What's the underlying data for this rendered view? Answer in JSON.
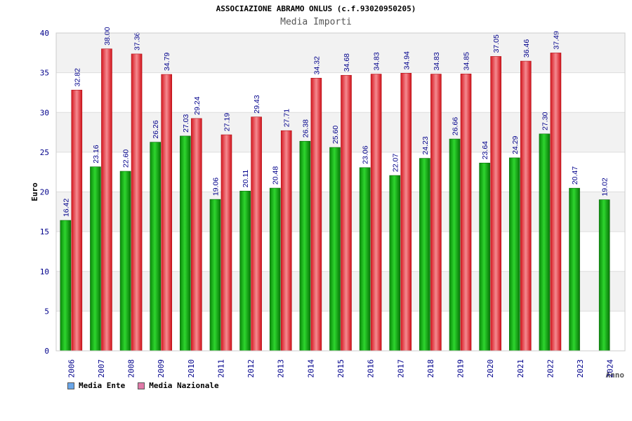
{
  "header": {
    "title": "ASSOCIAZIONE ABRAMO ONLUS (c.f.93020950205)",
    "subtitle": "Media Importi"
  },
  "legend": {
    "items": [
      {
        "label": "Media Ente",
        "color": "#6aa6e8"
      },
      {
        "label": "Media Nazionale",
        "color": "#e07aa8"
      }
    ]
  },
  "colors": {
    "series_ente": "#0fa80f",
    "series_nazionale": "#e8222a",
    "band": "#f2f2f2",
    "axis_text": "#00008b",
    "value_label": "#00008b"
  },
  "chart_data": {
    "type": "bar",
    "title": "ASSOCIAZIONE ABRAMO ONLUS (c.f.93020950205)",
    "subtitle": "Media Importi",
    "xlabel": "Anno",
    "ylabel": "Euro",
    "ylim": [
      0,
      40
    ],
    "yticks": [
      0,
      5,
      10,
      15,
      20,
      25,
      30,
      35,
      40
    ],
    "grid": true,
    "legend_position": "bottom-left",
    "categories": [
      "2006",
      "2007",
      "2008",
      "2009",
      "2010",
      "2011",
      "2012",
      "2013",
      "2014",
      "2015",
      "2016",
      "2017",
      "2018",
      "2019",
      "2020",
      "2021",
      "2022",
      "2023",
      "2024"
    ],
    "series": [
      {
        "name": "Media Ente",
        "values": [
          16.42,
          23.16,
          22.6,
          26.26,
          27.03,
          19.06,
          20.11,
          20.48,
          26.38,
          25.6,
          23.06,
          22.07,
          24.23,
          26.66,
          23.64,
          24.29,
          27.3,
          20.47,
          19.02
        ],
        "labels": [
          "16.42",
          "23.16",
          "22.60",
          "26.26",
          "27.03",
          "19.06",
          "20.11",
          "20.48",
          "26.38",
          "25.60",
          "23.06",
          "22.07",
          "24.23",
          "26.66",
          "23.64",
          "24.29",
          "27.30",
          "20.47",
          "19.02"
        ]
      },
      {
        "name": "Media Nazionale",
        "values": [
          32.82,
          38.0,
          37.36,
          34.79,
          29.24,
          27.19,
          29.43,
          27.71,
          34.32,
          34.68,
          34.83,
          34.94,
          34.83,
          34.85,
          37.05,
          36.46,
          37.49,
          null,
          null
        ],
        "labels": [
          "32.82",
          "38.00",
          "37.36",
          "34.79",
          "29.24",
          "27.19",
          "29.43",
          "27.71",
          "34.32",
          "34.68",
          "34.83",
          "34.94",
          "34.83",
          "34.85",
          "37.05",
          "36.46",
          "37.49",
          "",
          ""
        ]
      }
    ]
  }
}
